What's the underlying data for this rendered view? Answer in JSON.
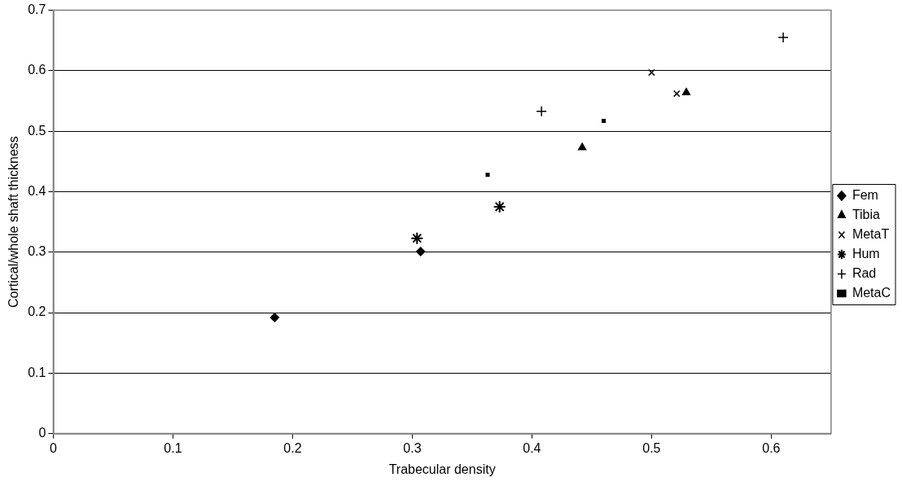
{
  "chart_data": {
    "type": "scatter",
    "xlabel": "Trabecular density",
    "ylabel": "Cortical/whole shaft thickness",
    "xlim": [
      0,
      0.65
    ],
    "xticks": [
      0,
      0.1,
      0.2,
      0.3,
      0.4,
      0.5,
      0.6
    ],
    "ylim": [
      0,
      0.7
    ],
    "yticks": [
      0,
      0.1,
      0.2,
      0.3,
      0.4,
      0.5,
      0.6,
      0.7
    ],
    "grid": "y",
    "legend": "right",
    "series": [
      {
        "name": "Fem",
        "color": "#000000",
        "marker": "diamond",
        "x": [
          0.185,
          0.307
        ],
        "values": [
          0.192,
          0.301
        ]
      },
      {
        "name": "Tibia",
        "color": "#000000",
        "marker": "triangle",
        "x": [
          0.442,
          0.529
        ],
        "values": [
          0.473,
          0.564
        ]
      },
      {
        "name": "MetaT",
        "color": "#000000",
        "marker": "x",
        "x": [
          0.5,
          0.521
        ],
        "values": [
          0.597,
          0.562
        ]
      },
      {
        "name": "Hum",
        "color": "#000000",
        "x": [
          0.304,
          0.373
        ],
        "values": [
          0.323,
          0.375
        ]
      },
      {
        "name": "Rad",
        "color": "#000000",
        "marker": "cross",
        "x": [
          0.408,
          0.61
        ],
        "values": [
          0.533,
          0.655
        ]
      },
      {
        "name": "MetaC",
        "color": "#000000",
        "marker": "square",
        "x": [
          0.363,
          0.46
        ],
        "values": [
          0.428,
          0.517
        ]
      }
    ]
  }
}
